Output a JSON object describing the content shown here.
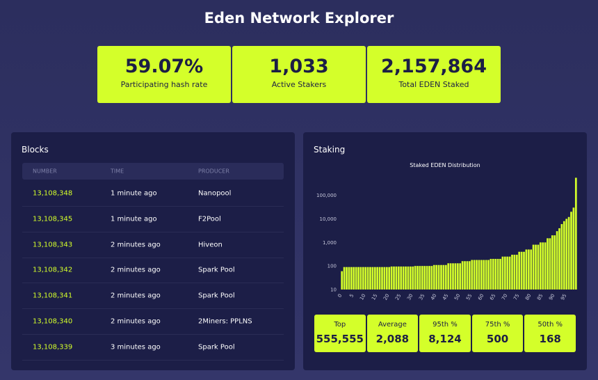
{
  "header": {
    "title": "Eden Network Explorer"
  },
  "stats": [
    {
      "value": "59.07%",
      "label": "Participating hash rate"
    },
    {
      "value": "1,033",
      "label": "Active Stakers"
    },
    {
      "value": "2,157,864",
      "label": "Total EDEN Staked"
    }
  ],
  "blocks": {
    "title": "Blocks",
    "columns": [
      "NUMBER",
      "TIME",
      "PRODUCER"
    ],
    "rows": [
      [
        "13,108,348",
        "1 minute ago",
        "Nanopool"
      ],
      [
        "13,108,345",
        "1 minute ago",
        "F2Pool"
      ],
      [
        "13,108,343",
        "2 minutes ago",
        "Hiveon"
      ],
      [
        "13,108,342",
        "2 minutes ago",
        "Spark Pool"
      ],
      [
        "13,108,341",
        "2 minutes ago",
        "Spark Pool"
      ],
      [
        "13,108,340",
        "2 minutes ago",
        "2Miners: PPLNS"
      ],
      [
        "13,108,339",
        "3 minutes ago",
        "Spark Pool"
      ]
    ]
  },
  "staking": {
    "title": "Staking",
    "summary": [
      {
        "label": "Top",
        "value": "555,555"
      },
      {
        "label": "Average",
        "value": "2,088"
      },
      {
        "label": "95th %",
        "value": "8,124"
      },
      {
        "label": "75th %",
        "value": "500"
      },
      {
        "label": "50th %",
        "value": "168"
      }
    ]
  },
  "chart_data": {
    "type": "bar",
    "title": "Staked EDEN Distribution",
    "color": "#d4ff2a",
    "log_scale": true,
    "categories": [
      "0",
      null,
      null,
      null,
      null,
      "5",
      null,
      null,
      null,
      null,
      "10",
      null,
      null,
      null,
      null,
      "15",
      null,
      null,
      null,
      null,
      "20",
      null,
      null,
      null,
      null,
      "25",
      null,
      null,
      null,
      null,
      "30",
      null,
      null,
      null,
      null,
      "35",
      null,
      null,
      null,
      null,
      "40",
      null,
      null,
      null,
      null,
      "45",
      null,
      null,
      null,
      null,
      "50",
      null,
      null,
      null,
      null,
      "55",
      null,
      null,
      null,
      null,
      "60",
      null,
      null,
      null,
      null,
      "65",
      null,
      null,
      null,
      null,
      "70",
      null,
      null,
      null,
      null,
      "75",
      null,
      null,
      null,
      null,
      "80",
      null,
      null,
      null,
      null,
      "85",
      null,
      null,
      null,
      null,
      "90",
      null,
      null,
      null,
      null,
      "95",
      null,
      null,
      null,
      null
    ],
    "values": [
      60,
      90,
      90,
      90,
      90,
      90,
      90,
      90,
      90,
      90,
      90,
      90,
      90,
      90,
      90,
      90,
      90,
      90,
      90,
      90,
      90,
      95,
      95,
      95,
      95,
      95,
      95,
      95,
      95,
      95,
      95,
      100,
      100,
      100,
      100,
      100,
      100,
      100,
      100,
      110,
      110,
      110,
      110,
      110,
      110,
      130,
      130,
      130,
      130,
      130,
      130,
      160,
      160,
      160,
      160,
      180,
      180,
      180,
      180,
      180,
      180,
      180,
      180,
      200,
      200,
      200,
      200,
      200,
      250,
      250,
      250,
      250,
      300,
      300,
      300,
      400,
      400,
      400,
      500,
      500,
      500,
      800,
      800,
      800,
      1000,
      1000,
      1000,
      1500,
      1500,
      2000,
      2000,
      3000,
      4000,
      6000,
      8000,
      10000,
      12000,
      20000,
      30000,
      555555
    ],
    "ylim": [
      10,
      700000
    ],
    "yticks": [
      10,
      100,
      {
        "value": 1000,
        "label": "1,000"
      },
      {
        "value": 10000,
        "label": "10,000"
      },
      {
        "value": 100000,
        "label": "100,000"
      }
    ]
  }
}
